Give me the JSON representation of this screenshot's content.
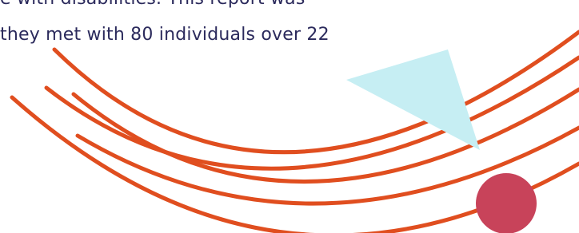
{
  "body": {
    "lines": [
      "e with disabilities. This report was",
      "they met with 80 individuals over 22"
    ]
  }
}
